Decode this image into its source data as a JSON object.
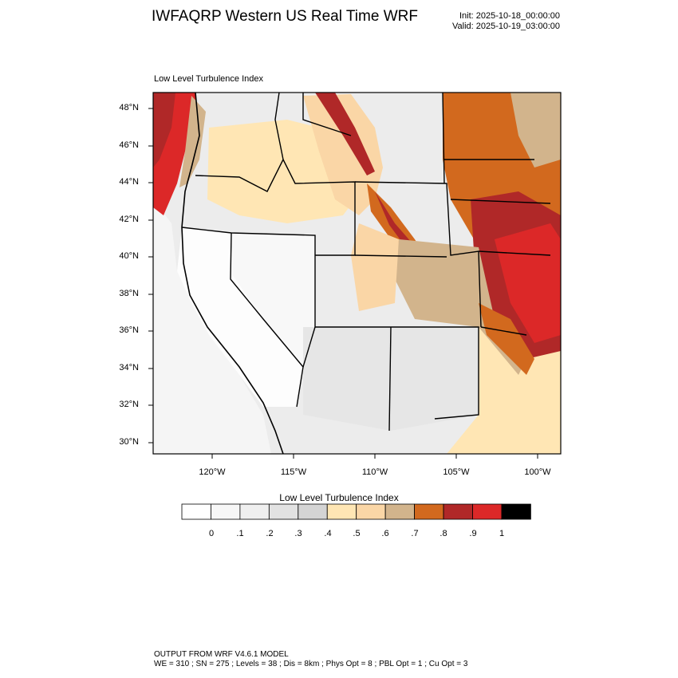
{
  "header": {
    "title": "IWFAQRP Western US Real Time WRF",
    "init": "Init: 2025-10-18_00:00:00",
    "valid": "Valid: 2025-10-19_03:00:00"
  },
  "panel": {
    "title": "Low Level Turbulence Index"
  },
  "map": {
    "lat_labels": [
      "48°N",
      "46°N",
      "44°N",
      "42°N",
      "40°N",
      "38°N",
      "36°N",
      "34°N",
      "32°N",
      "30°N"
    ],
    "lon_labels": [
      "120°W",
      "115°W",
      "110°W",
      "105°W",
      "100°W"
    ]
  },
  "legend": {
    "title": "Low Level Turbulence Index",
    "labels": [
      "0",
      ".1",
      ".2",
      ".3",
      ".4",
      ".5",
      ".6",
      ".7",
      ".8",
      ".9",
      "1"
    ],
    "colors": [
      "#ffffff",
      "#f7f7f7",
      "#efefef",
      "#e2e2e2",
      "#d4d4d4",
      "#ffe6b4",
      "#fad6a6",
      "#d2b48c",
      "#d2691e",
      "#b02828",
      "#dc2828",
      "#000000"
    ]
  },
  "footer": {
    "line1": "OUTPUT FROM WRF V4.6.1 MODEL",
    "line2": "WE = 310 ; SN = 275 ; Levels = 38 ; Dis = 8km ; Phys Opt = 8 ; PBL Opt = 1 ; Cu Opt = 3"
  }
}
